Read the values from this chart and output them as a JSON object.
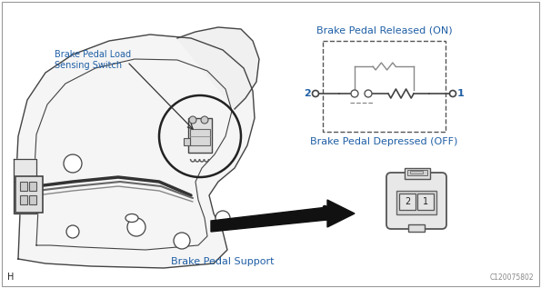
{
  "bg_color": "#ffffff",
  "text_color_blue": "#1F5FA6",
  "text_color_black": "#222222",
  "label_brake_pedal_load": "Brake Pedal Load\nSensing Switch",
  "label_brake_pedal_support": "Brake Pedal Support",
  "label_released": "Brake Pedal Released (ON)",
  "label_depressed": "Brake Pedal Depressed (OFF)",
  "label_h": "H",
  "label_code": "C120075802",
  "figsize": [
    5.95,
    3.17
  ],
  "dpi": 100,
  "line_color": "#444444",
  "light_line": "#888888",
  "fill_color": "#f0f0f0"
}
